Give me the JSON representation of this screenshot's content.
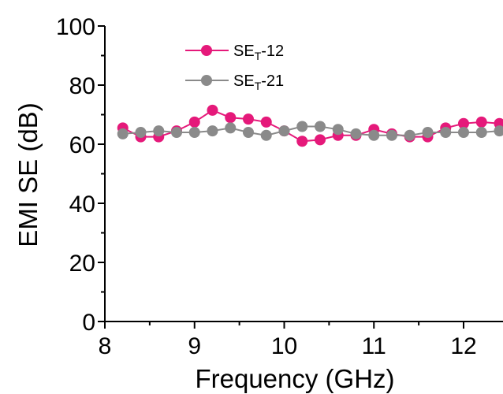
{
  "chart_data": {
    "type": "line",
    "title": "",
    "xlabel": "Frequency (GHz)",
    "ylabel": "EMI SE (dB)",
    "xlim": [
      8,
      12.4
    ],
    "ylim": [
      0,
      100
    ],
    "xticks": [
      "8",
      "9",
      "10",
      "11",
      "12"
    ],
    "yticks": [
      "0",
      "20",
      "40",
      "60",
      "80",
      "100"
    ],
    "grid": false,
    "legend_position": "top-left",
    "x": [
      8.2,
      8.4,
      8.6,
      8.8,
      9.0,
      9.2,
      9.4,
      9.6,
      9.8,
      10.0,
      10.2,
      10.4,
      10.6,
      10.8,
      11.0,
      11.2,
      11.4,
      11.6,
      11.8,
      12.0,
      12.2,
      12.4
    ],
    "series": [
      {
        "name": "SE_T-12",
        "legend_main": "SE",
        "legend_sub": "T",
        "legend_suffix": "-12",
        "color": "#e5197a",
        "values": [
          65.5,
          62.5,
          62.5,
          64.5,
          67.5,
          71.5,
          69.0,
          68.5,
          67.5,
          64.5,
          61.0,
          61.5,
          63.0,
          63.0,
          65.0,
          63.5,
          62.5,
          62.5,
          65.5,
          67.0,
          67.5,
          67.0
        ]
      },
      {
        "name": "SE_T-21",
        "legend_main": "SE",
        "legend_sub": "T",
        "legend_suffix": "-21",
        "color": "#8a8a8a",
        "values": [
          63.5,
          64.0,
          64.5,
          64.0,
          64.0,
          64.5,
          65.5,
          64.0,
          63.0,
          64.5,
          66.0,
          66.0,
          65.0,
          63.5,
          63.0,
          63.0,
          63.0,
          64.0,
          64.0,
          64.0,
          64.0,
          64.5
        ]
      }
    ]
  }
}
